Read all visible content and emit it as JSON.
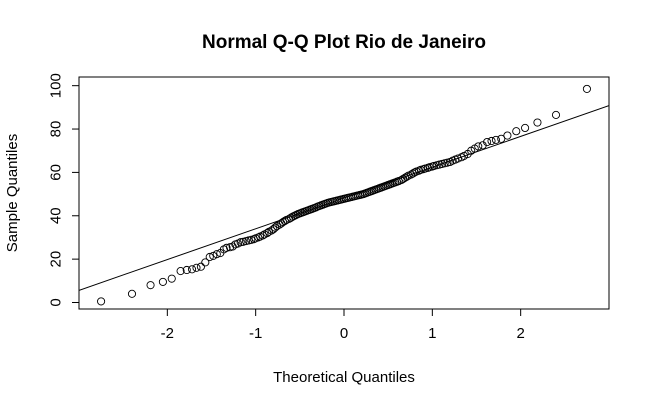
{
  "chart_data": {
    "type": "scatter",
    "title": "Normal Q-Q Plot Rio de Janeiro",
    "xlabel": "Theoretical Quantiles",
    "ylabel": "Sample Quantiles",
    "xlim": [
      -3.0,
      3.0
    ],
    "ylim": [
      -3,
      104
    ],
    "xticks": [
      -2,
      -1,
      0,
      1,
      2
    ],
    "yticks": [
      0,
      20,
      40,
      60,
      80,
      100
    ],
    "grid": false,
    "reference_line": {
      "intercept": 48.2,
      "slope": 14.2
    },
    "points": [
      [
        -2.75,
        0.5
      ],
      [
        -2.4,
        4.0
      ],
      [
        -2.19,
        8.0
      ],
      [
        -2.05,
        9.5
      ],
      [
        -1.95,
        11.0
      ],
      [
        -1.85,
        14.5
      ],
      [
        -1.78,
        15.0
      ],
      [
        -1.72,
        15.3
      ],
      [
        -1.67,
        16.0
      ],
      [
        -1.62,
        16.5
      ],
      [
        -1.57,
        18.5
      ],
      [
        -1.52,
        21.0
      ],
      [
        -1.48,
        21.5
      ],
      [
        -1.44,
        22.3
      ],
      [
        -1.4,
        22.8
      ],
      [
        -1.36,
        24.5
      ],
      [
        -1.33,
        25.2
      ],
      [
        -1.29,
        25.5
      ],
      [
        -1.26,
        25.8
      ],
      [
        -1.23,
        26.8
      ],
      [
        -1.2,
        27.2
      ],
      [
        -1.17,
        27.8
      ],
      [
        -1.14,
        28.0
      ],
      [
        -1.11,
        28.3
      ],
      [
        -1.08,
        28.6
      ],
      [
        -1.05,
        28.9
      ],
      [
        -1.02,
        29.2
      ],
      [
        -1.0,
        29.6
      ],
      [
        -0.97,
        30.0
      ],
      [
        -0.95,
        30.4
      ],
      [
        -0.92,
        30.9
      ],
      [
        -0.9,
        31.4
      ],
      [
        -0.87,
        32.0
      ],
      [
        -0.85,
        32.6
      ],
      [
        -0.82,
        33.2
      ],
      [
        -0.8,
        33.8
      ],
      [
        -0.78,
        34.5
      ],
      [
        -0.76,
        35.2
      ],
      [
        -0.73,
        35.9
      ],
      [
        -0.71,
        36.5
      ],
      [
        -0.69,
        37.1
      ],
      [
        -0.67,
        37.6
      ],
      [
        -0.65,
        38.1
      ],
      [
        -0.62,
        38.6
      ],
      [
        -0.6,
        39.1
      ],
      [
        -0.58,
        39.6
      ],
      [
        -0.56,
        40.0
      ],
      [
        -0.54,
        40.4
      ],
      [
        -0.52,
        40.8
      ],
      [
        -0.5,
        41.1
      ],
      [
        -0.48,
        41.4
      ],
      [
        -0.46,
        41.7
      ],
      [
        -0.44,
        42.0
      ],
      [
        -0.42,
        42.3
      ],
      [
        -0.4,
        42.6
      ],
      [
        -0.38,
        42.9
      ],
      [
        -0.36,
        43.2
      ],
      [
        -0.34,
        43.5
      ],
      [
        -0.32,
        43.8
      ],
      [
        -0.3,
        44.2
      ],
      [
        -0.28,
        44.5
      ],
      [
        -0.26,
        44.8
      ],
      [
        -0.24,
        45.1
      ],
      [
        -0.22,
        45.4
      ],
      [
        -0.2,
        45.7
      ],
      [
        -0.18,
        46.0
      ],
      [
        -0.16,
        46.2
      ],
      [
        -0.14,
        46.4
      ],
      [
        -0.12,
        46.6
      ],
      [
        -0.1,
        46.8
      ],
      [
        -0.08,
        47.0
      ],
      [
        -0.06,
        47.2
      ],
      [
        -0.04,
        47.4
      ],
      [
        -0.02,
        47.6
      ],
      [
        0.0,
        47.8
      ],
      [
        0.02,
        48.0
      ],
      [
        0.04,
        48.2
      ],
      [
        0.06,
        48.4
      ],
      [
        0.08,
        48.6
      ],
      [
        0.1,
        48.8
      ],
      [
        0.12,
        49.0
      ],
      [
        0.14,
        49.2
      ],
      [
        0.16,
        49.4
      ],
      [
        0.18,
        49.6
      ],
      [
        0.2,
        49.8
      ],
      [
        0.22,
        50.0
      ],
      [
        0.24,
        50.3
      ],
      [
        0.26,
        50.6
      ],
      [
        0.28,
        50.9
      ],
      [
        0.3,
        51.2
      ],
      [
        0.32,
        51.5
      ],
      [
        0.34,
        51.8
      ],
      [
        0.36,
        52.1
      ],
      [
        0.38,
        52.4
      ],
      [
        0.4,
        52.7
      ],
      [
        0.42,
        53.0
      ],
      [
        0.44,
        53.3
      ],
      [
        0.46,
        53.6
      ],
      [
        0.48,
        53.9
      ],
      [
        0.5,
        54.2
      ],
      [
        0.52,
        54.5
      ],
      [
        0.54,
        54.8
      ],
      [
        0.56,
        55.1
      ],
      [
        0.58,
        55.4
      ],
      [
        0.6,
        55.7
      ],
      [
        0.62,
        56.0
      ],
      [
        0.65,
        56.5
      ],
      [
        0.67,
        57.0
      ],
      [
        0.69,
        57.5
      ],
      [
        0.71,
        58.0
      ],
      [
        0.73,
        58.5
      ],
      [
        0.76,
        59.0
      ],
      [
        0.78,
        59.5
      ],
      [
        0.8,
        60.0
      ],
      [
        0.82,
        60.4
      ],
      [
        0.85,
        60.8
      ],
      [
        0.87,
        61.2
      ],
      [
        0.9,
        61.5
      ],
      [
        0.92,
        61.8
      ],
      [
        0.95,
        62.1
      ],
      [
        0.97,
        62.4
      ],
      [
        1.0,
        62.7
      ],
      [
        1.02,
        63.0
      ],
      [
        1.05,
        63.3
      ],
      [
        1.08,
        63.6
      ],
      [
        1.11,
        63.9
      ],
      [
        1.14,
        64.2
      ],
      [
        1.17,
        64.5
      ],
      [
        1.2,
        64.8
      ],
      [
        1.23,
        65.4
      ],
      [
        1.26,
        65.9
      ],
      [
        1.29,
        66.4
      ],
      [
        1.33,
        67.0
      ],
      [
        1.36,
        67.6
      ],
      [
        1.4,
        68.5
      ],
      [
        1.44,
        70.0
      ],
      [
        1.48,
        71.0
      ],
      [
        1.52,
        72.0
      ],
      [
        1.57,
        72.5
      ],
      [
        1.62,
        74.0
      ],
      [
        1.67,
        74.5
      ],
      [
        1.72,
        75.0
      ],
      [
        1.78,
        75.5
      ],
      [
        1.85,
        77.0
      ],
      [
        1.95,
        79.0
      ],
      [
        2.05,
        80.5
      ],
      [
        2.19,
        83.0
      ],
      [
        2.4,
        86.5
      ],
      [
        2.75,
        98.5
      ]
    ]
  }
}
